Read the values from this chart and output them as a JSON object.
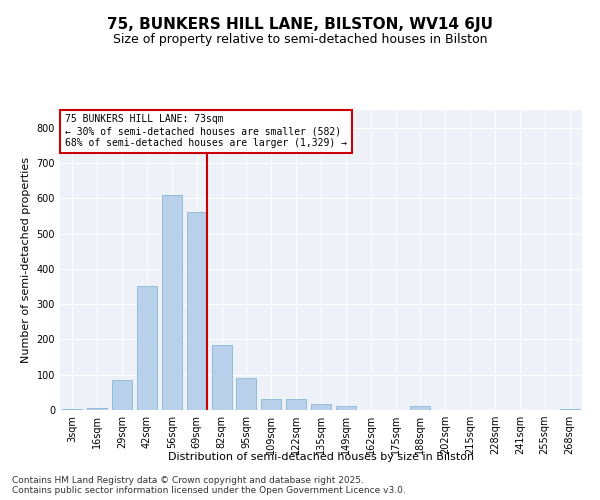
{
  "title": "75, BUNKERS HILL LANE, BILSTON, WV14 6JU",
  "subtitle": "Size of property relative to semi-detached houses in Bilston",
  "xlabel": "Distribution of semi-detached houses by size in Bilston",
  "ylabel": "Number of semi-detached properties",
  "categories": [
    "3sqm",
    "16sqm",
    "29sqm",
    "42sqm",
    "56sqm",
    "69sqm",
    "82sqm",
    "95sqm",
    "109sqm",
    "122sqm",
    "135sqm",
    "149sqm",
    "162sqm",
    "175sqm",
    "188sqm",
    "202sqm",
    "215sqm",
    "228sqm",
    "241sqm",
    "255sqm",
    "268sqm"
  ],
  "values": [
    2,
    5,
    85,
    350,
    610,
    560,
    185,
    90,
    32,
    32,
    18,
    10,
    0,
    0,
    10,
    0,
    0,
    0,
    0,
    0,
    3
  ],
  "bar_color": "#b8d0ea",
  "bar_edge_color": "#7aafd4",
  "property_line_color": "#cc0000",
  "annotation_text": "75 BUNKERS HILL LANE: 73sqm\n← 30% of semi-detached houses are smaller (582)\n68% of semi-detached houses are larger (1,329) →",
  "annotation_box_color": "#ffffff",
  "annotation_box_edge_color": "#cc0000",
  "ylim": [
    0,
    850
  ],
  "yticks": [
    0,
    100,
    200,
    300,
    400,
    500,
    600,
    700,
    800
  ],
  "background_color": "#eef2f8",
  "footer_text": "Contains HM Land Registry data © Crown copyright and database right 2025.\nContains public sector information licensed under the Open Government Licence v3.0.",
  "title_fontsize": 11,
  "subtitle_fontsize": 9,
  "axis_label_fontsize": 8,
  "tick_fontsize": 7,
  "footer_fontsize": 6.5
}
